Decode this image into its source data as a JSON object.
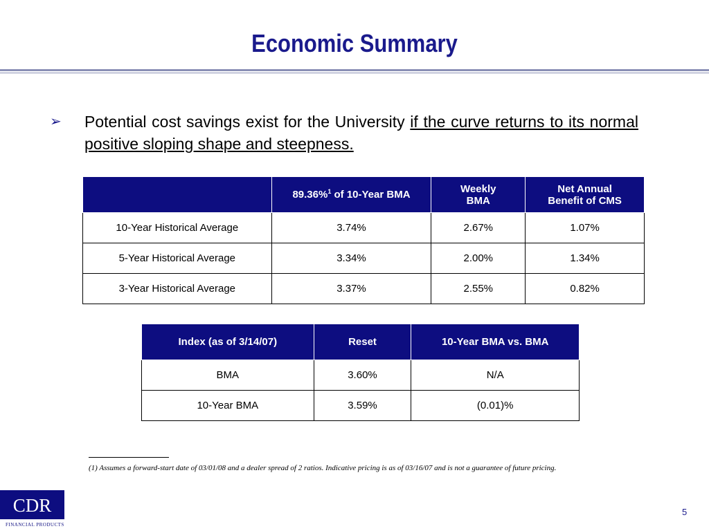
{
  "title": "Economic Summary",
  "bullet": {
    "icon": "arrow-bullet-icon",
    "glyph": "➢",
    "text_plain": "Potential cost savings exist for the University ",
    "text_underlined": "if the curve returns to its normal positive sloping shape and steepness."
  },
  "table1": {
    "headers": {
      "col0": "",
      "col1_main": "89.36%",
      "col1_sup": "1",
      "col1_rest": " of 10-Year BMA",
      "col2_line1": "Weekly",
      "col2_line2": "BMA",
      "col3_line1": "Net Annual",
      "col3_line2": "Benefit of CMS"
    },
    "rows": [
      [
        "10-Year Historical Average",
        "3.74%",
        "2.67%",
        "1.07%"
      ],
      [
        "5-Year Historical Average",
        "3.34%",
        "2.00%",
        "1.34%"
      ],
      [
        "3-Year Historical Average",
        "3.37%",
        "2.55%",
        "0.82%"
      ]
    ]
  },
  "table2": {
    "headers": [
      "Index (as of 3/14/07)",
      "Reset",
      "10-Year BMA vs. BMA"
    ],
    "rows": [
      [
        "BMA",
        "3.60%",
        "N/A"
      ],
      [
        "10-Year BMA",
        "3.59%",
        "(0.01)%"
      ]
    ]
  },
  "footnote": "(1) Assumes a forward-start date of 03/01/08 and a dealer spread of 2 ratios.  Indicative pricing is as of 03/16/07 and is not a guarantee of future pricing.",
  "logo": {
    "name": "CDR",
    "subtitle": "FINANCIAL PRODUCTS"
  },
  "page_number": "5",
  "colors": {
    "title": "#1a1a8c",
    "header_fill": "#0d0d80",
    "rule": "#8a8fb5"
  }
}
